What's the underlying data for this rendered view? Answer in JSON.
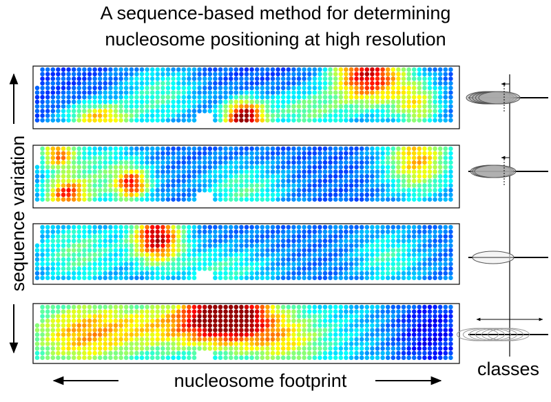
{
  "title_lines": [
    "A sequence-based method for determining",
    "nucleosome positioning at high resolution"
  ],
  "y_label": "sequence variation",
  "x_label": "nucleosome footprint",
  "classes_label": "classes"
}
